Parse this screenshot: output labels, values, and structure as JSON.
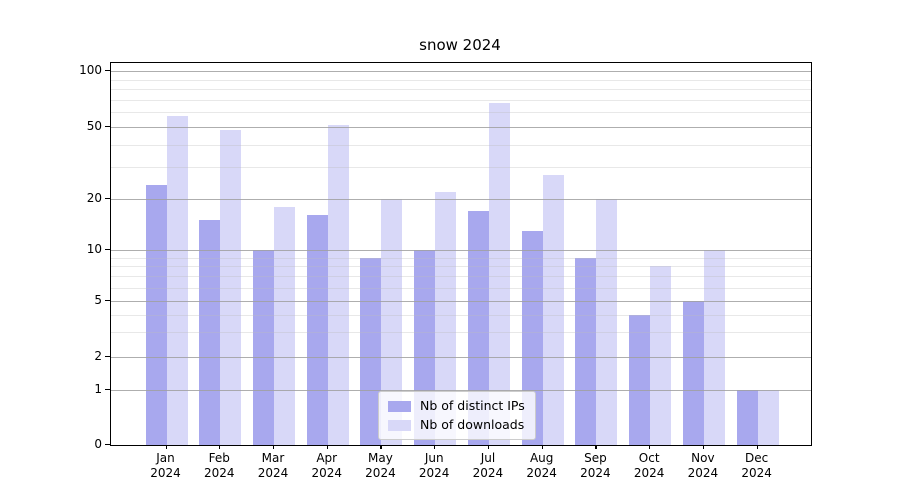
{
  "title": "snow 2024",
  "legend": {
    "items": [
      {
        "label": "Nb of distinct IPs",
        "color": "#a8a8ee"
      },
      {
        "label": "Nb of downloads",
        "color": "#d8d8f8"
      }
    ]
  },
  "chart_data": {
    "type": "bar",
    "title": "snow 2024",
    "categories": [
      "Jan 2024",
      "Feb 2024",
      "Mar 2024",
      "Apr 2024",
      "May 2024",
      "Jun 2024",
      "Jul 2024",
      "Aug 2024",
      "Sep 2024",
      "Oct 2024",
      "Nov 2024",
      "Dec 2024"
    ],
    "series": [
      {
        "name": "Nb of distinct IPs",
        "color": "#a8a8ee",
        "values": [
          24,
          15,
          10,
          16,
          9,
          10,
          17,
          13,
          9,
          4,
          5,
          1
        ]
      },
      {
        "name": "Nb of downloads",
        "color": "#d8d8f8",
        "values": [
          57,
          48,
          18,
          51,
          20,
          22,
          67,
          27,
          20,
          8,
          10,
          1
        ]
      }
    ],
    "xlabel": "",
    "ylabel": "",
    "yscale": "symlog",
    "ylim": [
      0,
      110
    ],
    "y_ticks": [
      0,
      1,
      2,
      5,
      10,
      20,
      50,
      100
    ],
    "y_minor_ticks": [
      3,
      4,
      6,
      7,
      8,
      9,
      30,
      40,
      60,
      70,
      80,
      90
    ],
    "grid": true,
    "grid_above_bars": true,
    "legend_position": "lower center",
    "colors": {
      "major_grid": "#a0a0a0",
      "minor_grid": "#d6d6d6",
      "spine": "#000000",
      "background": "#ffffff"
    }
  }
}
